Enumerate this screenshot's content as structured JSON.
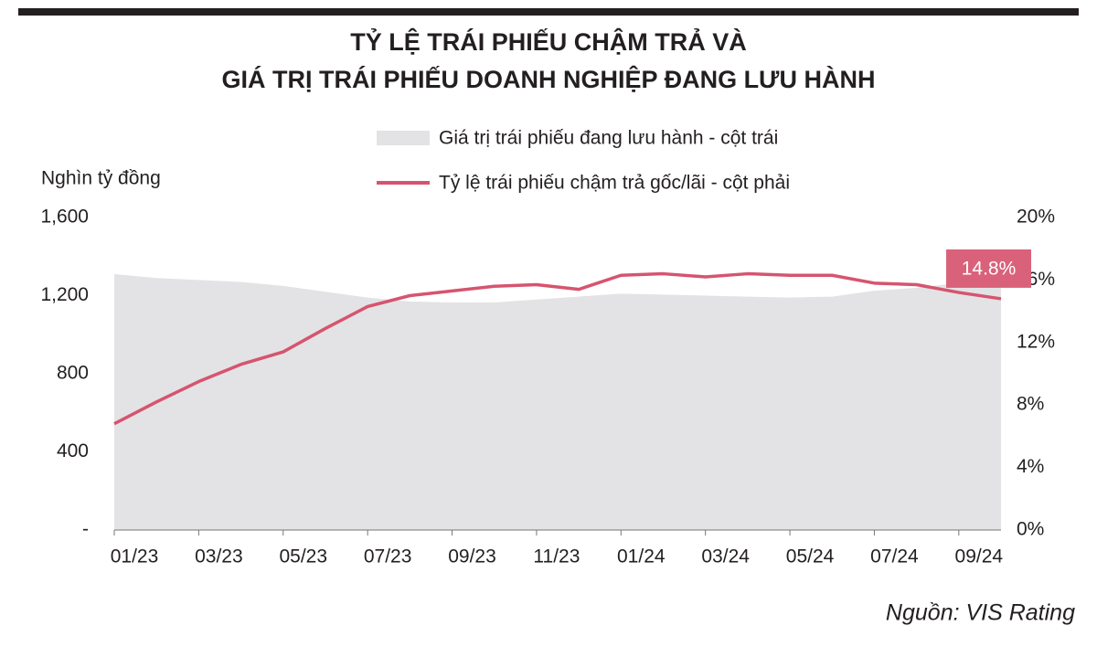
{
  "chart_data": {
    "type": "area-line",
    "title": [
      "TỶ LỆ TRÁI PHIẾU CHẬM TRẢ VÀ",
      "GIÁ TRỊ TRÁI PHIẾU DOANH NGHIỆP ĐANG LƯU HÀNH"
    ],
    "y_axis_label": "Nghìn tỷ đồng",
    "source": "Nguồn: VIS Rating",
    "categories": [
      "01/23",
      null,
      "03/23",
      null,
      "05/23",
      null,
      "07/23",
      null,
      "09/23",
      null,
      "11/23",
      null,
      "01/24",
      null,
      "03/24",
      null,
      "05/24",
      null,
      "07/24",
      null,
      "09/24",
      null
    ],
    "series": [
      {
        "name": "Giá trị trái phiếu đang lưu hành - cột trái",
        "color": "#e3e3e5",
        "kind": "area",
        "axis": "y",
        "values": [
          1310,
          1290,
          1280,
          1270,
          1250,
          1220,
          1190,
          1170,
          1165,
          1165,
          1180,
          1195,
          1210,
          1205,
          1200,
          1195,
          1190,
          1195,
          1225,
          1240,
          1265,
          1290
        ]
      },
      {
        "name": "Tỷ lệ trái phiếu chậm trả gốc/lãi - cột phải",
        "color": "#d6546f",
        "kind": "line",
        "axis": "y2",
        "values": [
          6.8,
          8.2,
          9.5,
          10.6,
          11.4,
          12.9,
          14.3,
          15.0,
          15.3,
          15.6,
          15.7,
          15.4,
          16.3,
          16.4,
          16.2,
          16.4,
          16.3,
          16.3,
          15.8,
          15.7,
          15.2,
          14.8
        ],
        "value_labels": [
          null,
          null,
          null,
          null,
          null,
          null,
          null,
          null,
          null,
          null,
          null,
          null,
          null,
          null,
          null,
          null,
          null,
          null,
          null,
          null,
          null,
          "14.8%"
        ]
      }
    ],
    "ylim": [
      0,
      1600
    ],
    "yticks": [
      {
        "value": 0,
        "label": "-"
      },
      400,
      800,
      {
        "value": 1200,
        "label": "1,200"
      },
      {
        "value": 1600,
        "label": "1,600"
      }
    ],
    "y2lim": [
      0,
      20
    ],
    "y2ticks": [
      {
        "value": 0,
        "label": "0%"
      },
      {
        "value": 4,
        "label": "4%"
      },
      {
        "value": 8,
        "label": "8%"
      },
      {
        "value": 12,
        "label": "12%"
      },
      {
        "value": 16,
        "label": "16%"
      },
      {
        "value": 20,
        "label": "20%"
      }
    ],
    "grid": false
  }
}
